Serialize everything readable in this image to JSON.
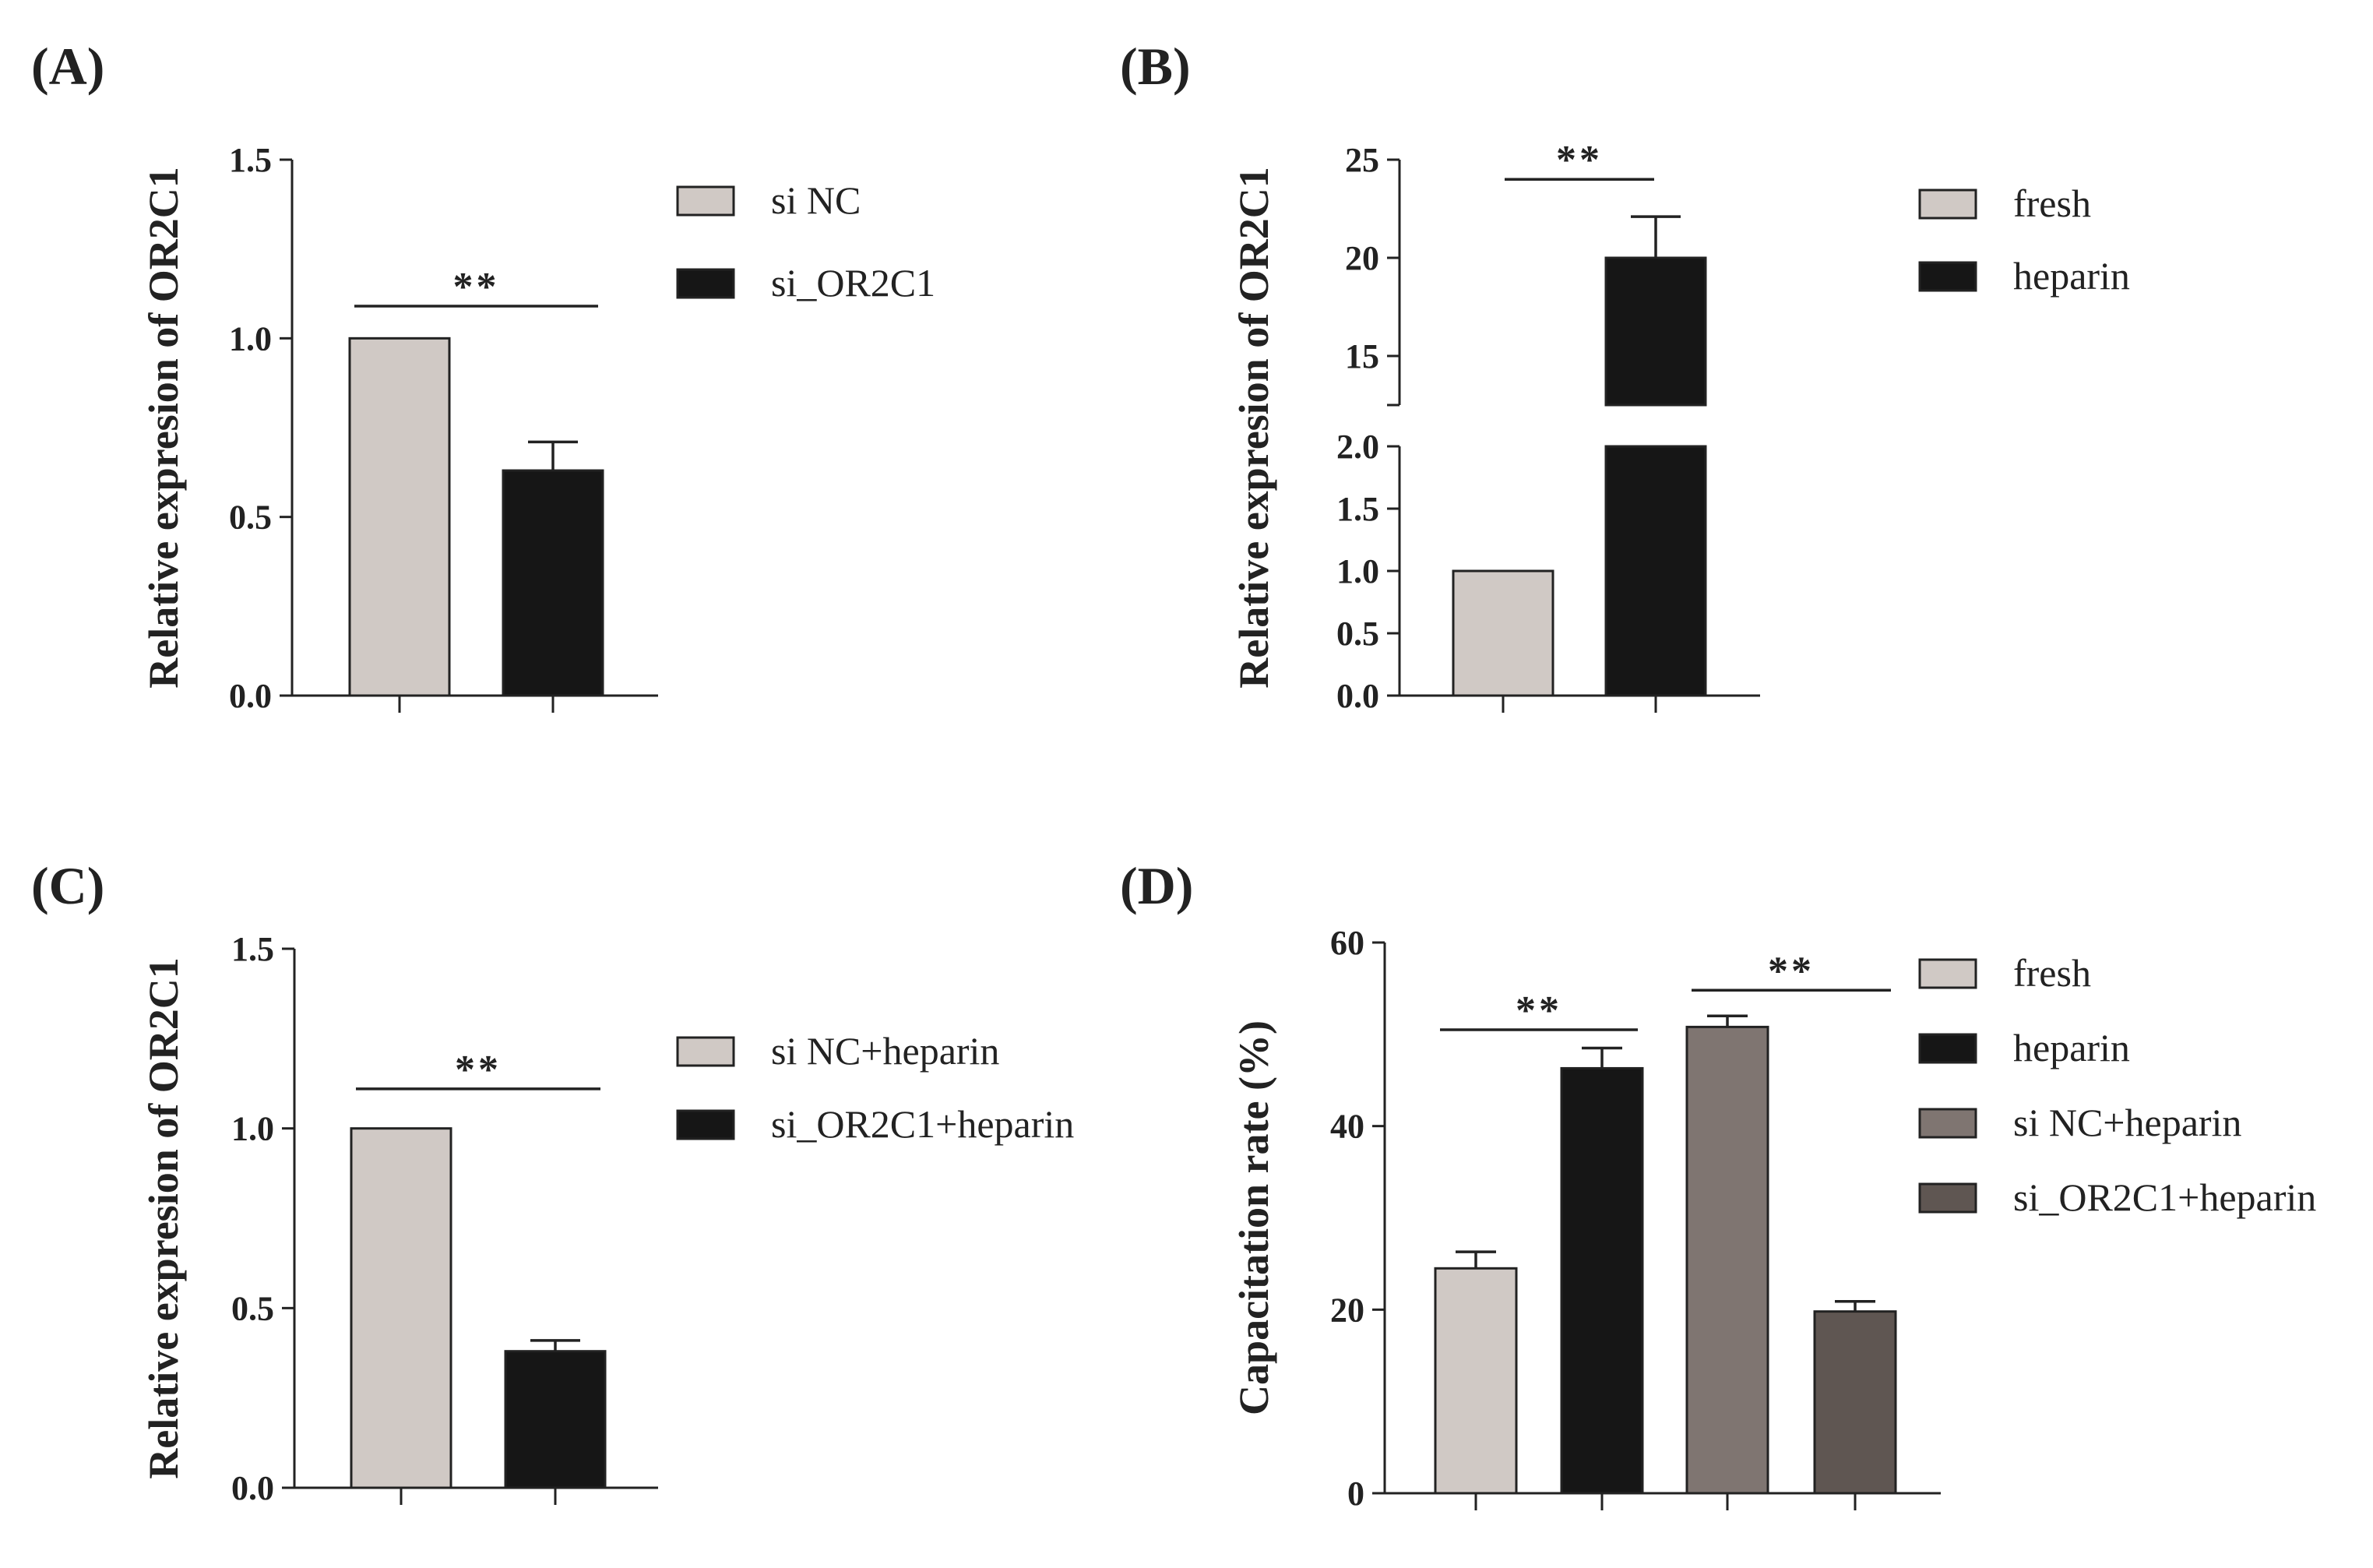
{
  "figure": {
    "colors": {
      "light": "#d0c9c5",
      "black": "#161616",
      "mid": "#7f7571",
      "dark": "#5f5652",
      "axis": "#222222"
    }
  },
  "chart_data": [
    {
      "id": "A",
      "panel_label": "(A)",
      "type": "bar",
      "ylabel": "Relative expresion of OR2C1",
      "ylim": [
        0,
        1.5
      ],
      "yticks": [
        "0.0",
        "0.5",
        "1.0",
        "1.5"
      ],
      "ytick_values": [
        0,
        0.5,
        1.0,
        1.5
      ],
      "categories": [
        "si NC",
        "si_OR2C1"
      ],
      "values": [
        1.0,
        0.63
      ],
      "errors": [
        0,
        0.08
      ],
      "colors": [
        "#d0c9c5",
        "#161616"
      ],
      "legend": [
        "si NC",
        "si_OR2C1"
      ],
      "significance": [
        {
          "from": 0,
          "to": 1,
          "label": "**",
          "y": 1.09
        }
      ]
    },
    {
      "id": "B",
      "panel_label": "(B)",
      "type": "bar",
      "ylabel": "Relative expresion of OR2C1",
      "broken_axis": true,
      "lower_ylim": [
        0,
        2.0
      ],
      "upper_ylim": [
        12.5,
        25
      ],
      "lower_yticks": [
        "0.0",
        "0.5",
        "1.0",
        "1.5",
        "2.0"
      ],
      "lower_ytick_values": [
        0,
        0.5,
        1.0,
        1.5,
        2.0
      ],
      "upper_yticks": [
        "15",
        "20",
        "25"
      ],
      "upper_ytick_values": [
        15,
        20,
        25
      ],
      "categories": [
        "fresh",
        "heparin"
      ],
      "values": [
        1.0,
        20.0
      ],
      "errors": [
        0,
        2.1
      ],
      "colors": [
        "#d0c9c5",
        "#161616"
      ],
      "legend": [
        "fresh",
        "heparin"
      ],
      "significance": [
        {
          "from": 0,
          "to": 1,
          "label": "**",
          "y": 24.0
        }
      ]
    },
    {
      "id": "C",
      "panel_label": "(C)",
      "type": "bar",
      "ylabel": "Relative expresion of OR2C1",
      "ylim": [
        0,
        1.5
      ],
      "yticks": [
        "0.0",
        "0.5",
        "1.0",
        "1.5"
      ],
      "ytick_values": [
        0,
        0.5,
        1.0,
        1.5
      ],
      "categories": [
        "si NC+heparin",
        "si_OR2C1+heparin"
      ],
      "values": [
        1.0,
        0.38
      ],
      "errors": [
        0,
        0.03
      ],
      "colors": [
        "#d0c9c5",
        "#161616"
      ],
      "legend": [
        "si NC+heparin",
        "si_OR2C1+heparin"
      ],
      "significance": [
        {
          "from": 0,
          "to": 1,
          "label": "**",
          "y": 1.11
        }
      ]
    },
    {
      "id": "D",
      "panel_label": "(D)",
      "type": "bar",
      "ylabel": "Capacitation rate (%)",
      "ylim": [
        0,
        60
      ],
      "yticks": [
        "0",
        "20",
        "40",
        "60"
      ],
      "ytick_values": [
        0,
        20,
        40,
        60
      ],
      "categories": [
        "fresh",
        "heparin",
        "si NC+heparin",
        "si_OR2C1+heparin"
      ],
      "values": [
        24.5,
        46.3,
        50.8,
        19.8
      ],
      "errors": [
        1.8,
        2.2,
        1.2,
        1.1
      ],
      "colors": [
        "#d0c9c5",
        "#161616",
        "#7f7571",
        "#5f5652"
      ],
      "legend": [
        "fresh",
        "heparin",
        "si NC+heparin",
        "si_OR2C1+heparin"
      ],
      "significance": [
        {
          "from": 0,
          "to": 1,
          "label": "**",
          "y": 50.5
        },
        {
          "from": 2,
          "to": 3,
          "label": "**",
          "y": 54.8
        }
      ]
    }
  ]
}
